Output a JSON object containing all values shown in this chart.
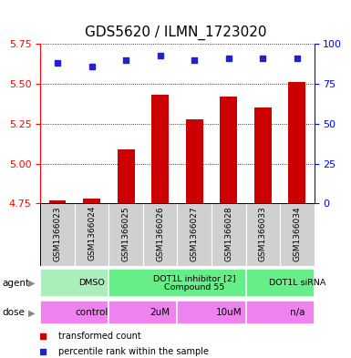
{
  "title": "GDS5620 / ILMN_1723020",
  "samples": [
    "GSM1366023",
    "GSM1366024",
    "GSM1366025",
    "GSM1366026",
    "GSM1366027",
    "GSM1366028",
    "GSM1366033",
    "GSM1366034"
  ],
  "bar_values": [
    4.77,
    4.78,
    5.09,
    5.43,
    5.28,
    5.42,
    5.35,
    5.51
  ],
  "dot_values": [
    88,
    86,
    90,
    93,
    90,
    91,
    91,
    91
  ],
  "ylim_left": [
    4.75,
    5.75
  ],
  "ylim_right": [
    0,
    100
  ],
  "yticks_left": [
    4.75,
    5.0,
    5.25,
    5.5,
    5.75
  ],
  "yticks_right": [
    0,
    25,
    50,
    75,
    100
  ],
  "bar_color": "#cc0000",
  "dot_color": "#2222cc",
  "agent_groups": [
    {
      "label": "DMSO",
      "start": 0,
      "end": 2,
      "color": "#aaeebb"
    },
    {
      "label": "DOT1L inhibitor [2]\nCompound 55",
      "start": 2,
      "end": 6,
      "color": "#66ee88"
    },
    {
      "label": "DOT1L siRNA",
      "start": 6,
      "end": 8,
      "color": "#66ee88"
    }
  ],
  "dose_groups": [
    {
      "label": "control",
      "start": 0,
      "end": 2,
      "color": "#ee82ee"
    },
    {
      "label": "2uM",
      "start": 2,
      "end": 4,
      "color": "#ee82ee"
    },
    {
      "label": "10uM",
      "start": 4,
      "end": 6,
      "color": "#ee82ee"
    },
    {
      "label": "n/a",
      "start": 6,
      "end": 8,
      "color": "#ee82ee"
    }
  ],
  "legend_bar_label": "transformed count",
  "legend_dot_label": "percentile rank within the sample",
  "agent_label": "agent",
  "dose_label": "dose",
  "title_fontsize": 11,
  "tick_fontsize": 8,
  "bar_width": 0.5
}
